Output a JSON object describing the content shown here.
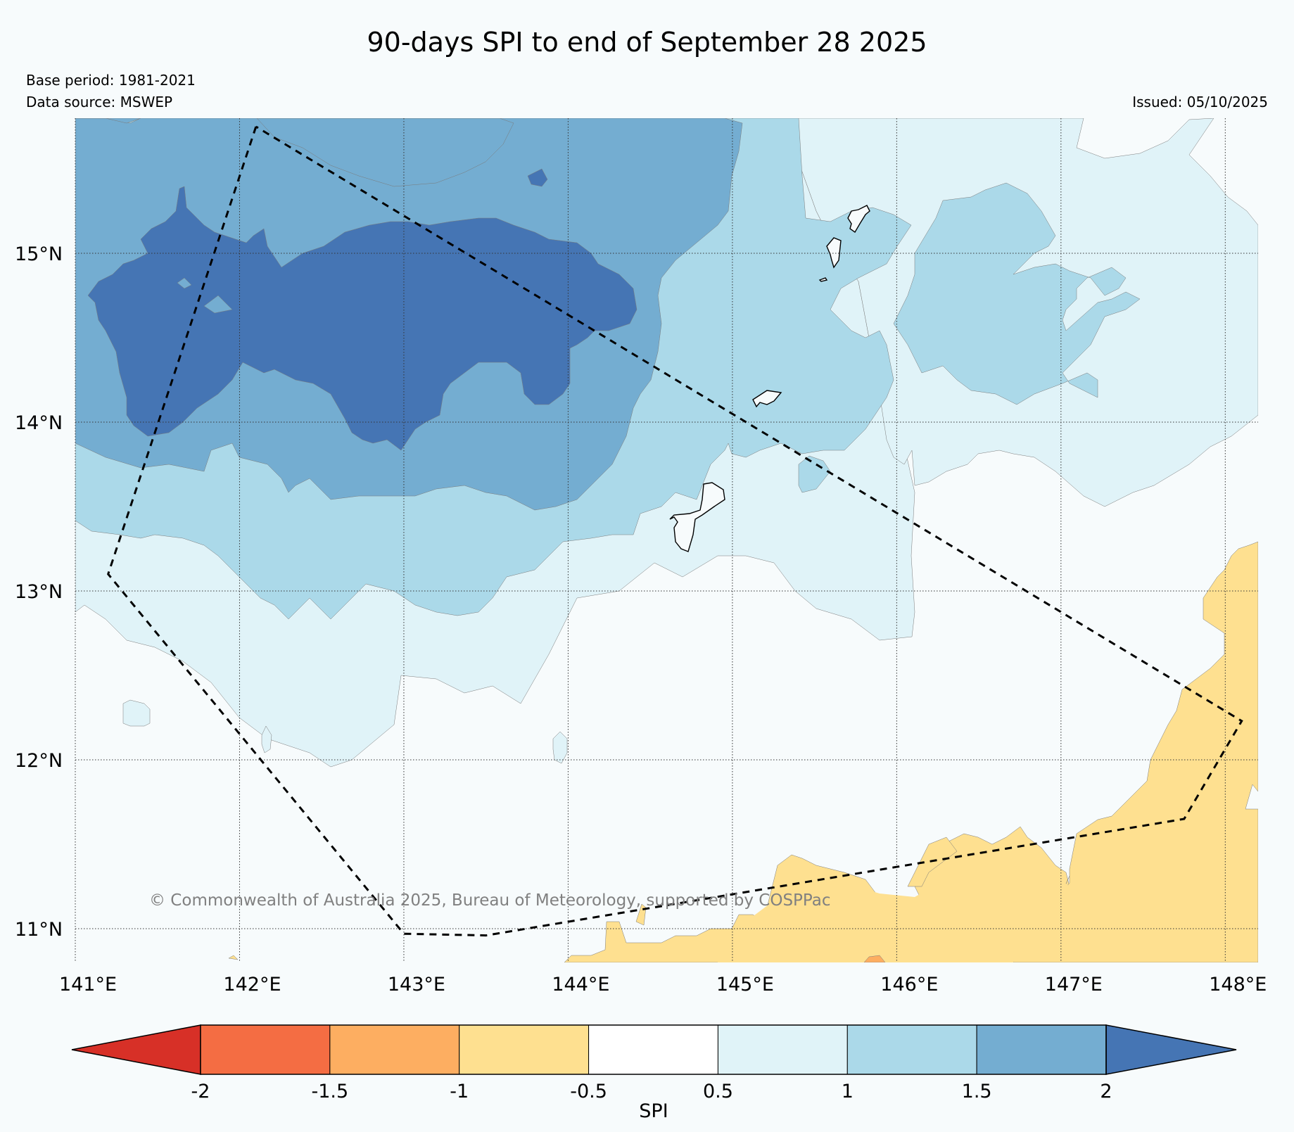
{
  "title": "90-days SPI to end of September 28 2025",
  "base_period": "Base period: 1981-2021",
  "data_source": "Data source: MSWEP",
  "issued": "Issued: 05/10/2025",
  "copyright": "© Commonwealth of Australia 2025, Bureau of Meteorology, supported by COSPPac",
  "chart_data": {
    "type": "map",
    "lon_range": [
      141.0,
      148.2
    ],
    "lat_range": [
      10.8,
      15.8
    ],
    "lon_ticks": [
      141,
      142,
      143,
      144,
      145,
      146,
      147,
      148
    ],
    "lat_ticks": [
      11,
      12,
      13,
      14,
      15
    ],
    "lon_tick_labels": [
      "141°E",
      "142°E",
      "143°E",
      "144°E",
      "145°E",
      "146°E",
      "147°E",
      "148°E"
    ],
    "lat_tick_labels": [
      "11°N",
      "12°N",
      "13°N",
      "14°N",
      "15°N"
    ],
    "grid": true,
    "legend": {
      "title": "SPI",
      "boundaries": [
        -2,
        -1.5,
        -1,
        -0.5,
        0.5,
        1,
        1.5,
        2
      ],
      "tick_labels": [
        "-2",
        "-1.5",
        "-1",
        "-0.5",
        "0.5",
        "1",
        "1.5",
        "2"
      ],
      "colors": [
        "#d73027",
        "#f46d43",
        "#fdae61",
        "#fee090",
        "#ffffff",
        "#e0f3f8",
        "#abd9e9",
        "#74add1",
        "#4575b4"
      ],
      "extend": "both"
    },
    "background_class_color": "#f7fbfc",
    "regions": [
      {
        "name": "dry-region-south-east",
        "spi_class": "-1 to -0.5",
        "color": "#fee090"
      },
      {
        "name": "spot-south-east",
        "spi_class": "-1.5 to -1",
        "color": "#fdae61"
      },
      {
        "name": "wet-region-northwest-band-1",
        "spi_class": "0.5 to 1",
        "color": "#e0f3f8"
      },
      {
        "name": "wet-region-northwest-band-2",
        "spi_class": "1 to 1.5",
        "color": "#abd9e9"
      },
      {
        "name": "wet-region-northwest-band-3",
        "spi_class": "1.5 to 2",
        "color": "#74add1"
      },
      {
        "name": "wet-region-northwest-core",
        "spi_class": "> 2",
        "color": "#4575b4"
      }
    ],
    "boundary_polygon": [
      [
        142.1,
        15.75
      ],
      [
        141.2,
        13.1
      ],
      [
        143.0,
        10.97
      ],
      [
        143.5,
        10.96
      ],
      [
        147.75,
        11.65
      ],
      [
        148.1,
        12.23
      ],
      [
        142.1,
        15.75
      ]
    ]
  }
}
